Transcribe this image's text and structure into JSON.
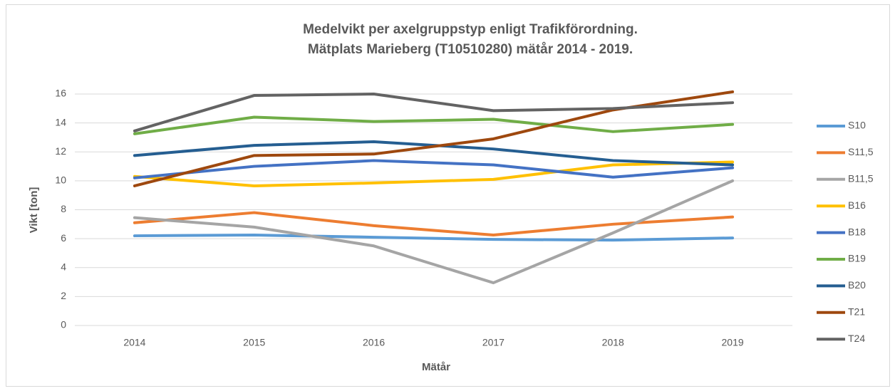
{
  "chart_data": {
    "type": "line",
    "title": "Medelvikt per axelgruppstyp enligt Trafikförordning.",
    "subtitle": "Mätplats Marieberg (T10510280) mätår 2014 - 2019.",
    "x_label": "Mätår",
    "y_label": "Vikt [ton]",
    "categories": [
      "2014",
      "2015",
      "2016",
      "2017",
      "2018",
      "2019"
    ],
    "ylim": [
      0,
      16
    ],
    "yticks": [
      0,
      2,
      4,
      6,
      8,
      10,
      12,
      14,
      16
    ],
    "grid": true,
    "legend": "right",
    "series": [
      {
        "name": "S10",
        "color": "#5b9bd5",
        "values": [
          6.2,
          6.25,
          6.1,
          5.95,
          5.9,
          6.05
        ]
      },
      {
        "name": "S11,5",
        "color": "#ed7d31",
        "values": [
          7.1,
          7.8,
          6.9,
          6.25,
          7.0,
          7.5
        ]
      },
      {
        "name": "B11,5",
        "color": "#a5a5a5",
        "values": [
          7.45,
          6.8,
          5.5,
          2.95,
          6.4,
          10.0
        ]
      },
      {
        "name": "B16",
        "color": "#ffc000",
        "values": [
          10.3,
          9.65,
          9.85,
          10.1,
          11.1,
          11.3
        ]
      },
      {
        "name": "B18",
        "color": "#4472c4",
        "values": [
          10.2,
          11.0,
          11.4,
          11.1,
          10.25,
          10.9
        ]
      },
      {
        "name": "B19",
        "color": "#70ad47",
        "values": [
          13.25,
          14.4,
          14.1,
          14.25,
          13.4,
          13.9
        ]
      },
      {
        "name": "B20",
        "color": "#255e91",
        "values": [
          11.75,
          12.45,
          12.7,
          12.2,
          11.4,
          11.1
        ]
      },
      {
        "name": "T21",
        "color": "#9e480e",
        "values": [
          9.65,
          11.75,
          11.85,
          12.9,
          14.9,
          16.15
        ]
      },
      {
        "name": "T24",
        "color": "#636363",
        "values": [
          13.45,
          15.9,
          16.0,
          14.85,
          15.0,
          15.4
        ]
      }
    ]
  }
}
